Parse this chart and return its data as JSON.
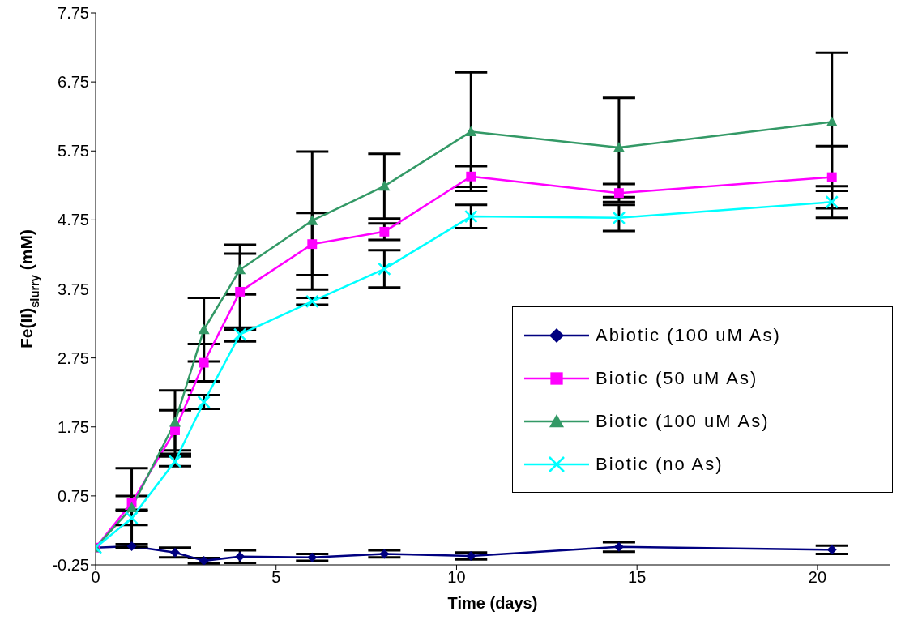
{
  "chart_data": {
    "type": "line",
    "xlabel": "Time (days)",
    "ylabel": "Fe(II)$_{slurry}$ (mM)",
    "x": [
      0,
      1,
      2.2,
      3,
      4,
      6,
      8,
      10.4,
      14.5,
      20.4
    ],
    "xlim": [
      0,
      22
    ],
    "xticks": [
      0,
      5,
      10,
      15,
      20
    ],
    "ylim": [
      -0.25,
      7.75
    ],
    "yticks": [
      -0.25,
      0.75,
      1.75,
      2.75,
      3.75,
      4.75,
      5.75,
      6.75,
      7.75
    ],
    "grid": false,
    "legend": "right",
    "line_style": "solid",
    "series": [
      {
        "name": "Abiotic (100 uM As)",
        "color": "#000080",
        "marker": "diamond",
        "values": [
          0,
          0.02,
          -0.07,
          -0.19,
          -0.13,
          -0.14,
          -0.09,
          -0.12,
          0.01,
          -0.03
        ],
        "errors": [
          null,
          0.03,
          0.07,
          0.04,
          0.09,
          0.05,
          0.05,
          0.05,
          0.07,
          0.06
        ]
      },
      {
        "name": "Biotic (50 uM As)",
        "color": "#ff00ff",
        "marker": "square",
        "values": [
          0,
          0.65,
          1.7,
          2.68,
          3.71,
          4.4,
          4.58,
          5.38,
          5.14,
          5.37
        ],
        "errors": [
          null,
          0.1,
          0.29,
          0.27,
          0.55,
          0.45,
          0.12,
          0.15,
          0.13,
          0.45
        ]
      },
      {
        "name": "Biotic (100 uM As)",
        "color": "#339966",
        "marker": "triangle",
        "values": [
          0,
          0.58,
          1.82,
          3.16,
          4.03,
          4.74,
          5.24,
          6.03,
          5.8,
          6.17
        ],
        "errors": [
          null,
          0.57,
          0.46,
          0.46,
          0.36,
          1.0,
          0.47,
          0.86,
          0.72,
          1.0
        ]
      },
      {
        "name": "Biotic (no As)",
        "color": "#00ffff",
        "marker": "cross",
        "values": [
          0,
          0.43,
          1.25,
          2.11,
          3.09,
          3.57,
          4.04,
          4.8,
          4.78,
          5.01
        ],
        "errors": [
          null,
          0.1,
          0.07,
          0.1,
          0.1,
          0.05,
          0.27,
          0.17,
          0.19,
          0.23
        ]
      }
    ]
  }
}
